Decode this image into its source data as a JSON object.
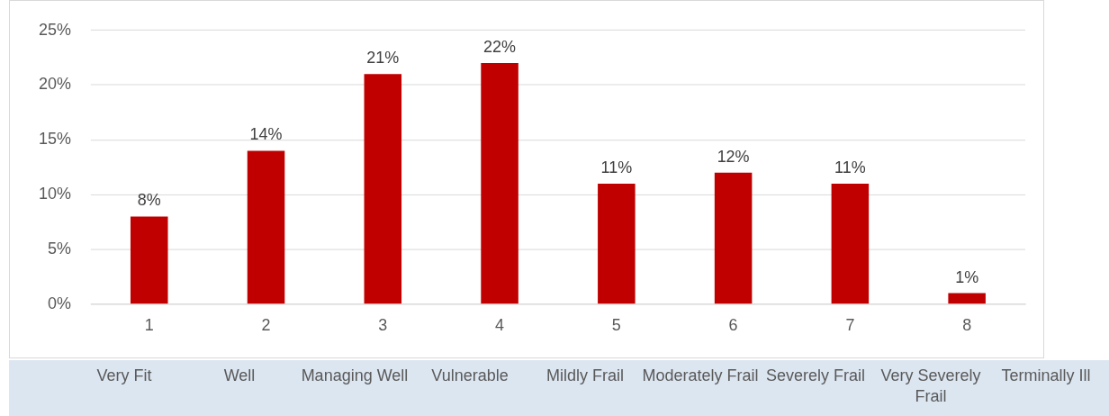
{
  "chart_data": {
    "type": "bar",
    "categories": [
      "1",
      "2",
      "3",
      "4",
      "5",
      "6",
      "7",
      "8"
    ],
    "values": [
      8,
      14,
      21,
      22,
      11,
      12,
      11,
      1
    ],
    "value_labels": [
      "8%",
      "14%",
      "21%",
      "22%",
      "11%",
      "12%",
      "11%",
      "1%"
    ],
    "color": "#c00000",
    "ylim": [
      0,
      25
    ],
    "yticks": [
      {
        "value": 0,
        "label": "0%"
      },
      {
        "value": 5,
        "label": "5%"
      },
      {
        "value": 10,
        "label": "10%"
      },
      {
        "value": 15,
        "label": "15%"
      },
      {
        "value": 20,
        "label": "20%"
      },
      {
        "value": 25,
        "label": "25%"
      }
    ],
    "grid": "y",
    "legend": false,
    "annotations": [
      "Very Fit",
      "Well",
      "Managing Well",
      "Vulnerable",
      "Mildly Frail",
      "Moderately Frail",
      "Severely Frail",
      "Very Severely Frail",
      "Terminally Ill"
    ]
  }
}
